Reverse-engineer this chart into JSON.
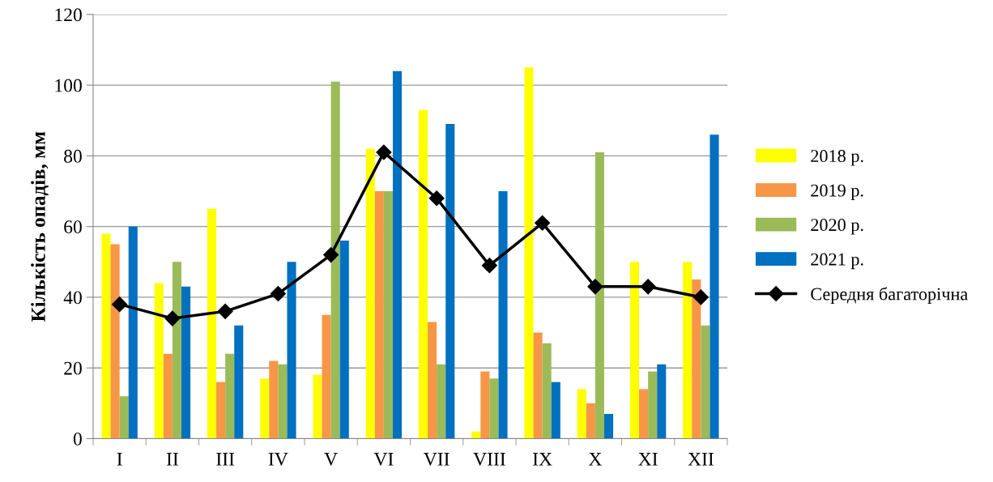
{
  "chart_data": {
    "type": "bar",
    "ylabel": "Кількість опадів, мм",
    "categories": [
      "I",
      "II",
      "III",
      "IV",
      "V",
      "VI",
      "VII",
      "VIII",
      "IX",
      "X",
      "XI",
      "XII"
    ],
    "series": [
      {
        "name": "2018 р.",
        "color": "#ffff00",
        "values": [
          58,
          44,
          65,
          17,
          18,
          82,
          93,
          2,
          105,
          14,
          50,
          50
        ]
      },
      {
        "name": "2019 р.",
        "color": "#f79646",
        "values": [
          55,
          24,
          16,
          22,
          35,
          70,
          33,
          19,
          30,
          10,
          14,
          45
        ]
      },
      {
        "name": "2020 р.",
        "color": "#9bbb59",
        "values": [
          12,
          50,
          24,
          21,
          101,
          70,
          21,
          17,
          27,
          81,
          19,
          32
        ]
      },
      {
        "name": "2021 р.",
        "color": "#0070c0",
        "values": [
          60,
          43,
          32,
          50,
          56,
          104,
          89,
          70,
          16,
          7,
          21,
          86
        ]
      },
      {
        "name": "Середня багаторічна",
        "type": "line",
        "color": "#000000",
        "marker": "diamond",
        "line_style": "solid",
        "values": [
          38,
          34,
          36,
          41,
          52,
          81,
          68,
          49,
          61,
          43,
          43,
          40
        ]
      }
    ],
    "ylim": [
      0,
      120
    ],
    "yticks": [
      0,
      20,
      40,
      60,
      80,
      100,
      120
    ],
    "grid": "y",
    "legend": "right"
  }
}
